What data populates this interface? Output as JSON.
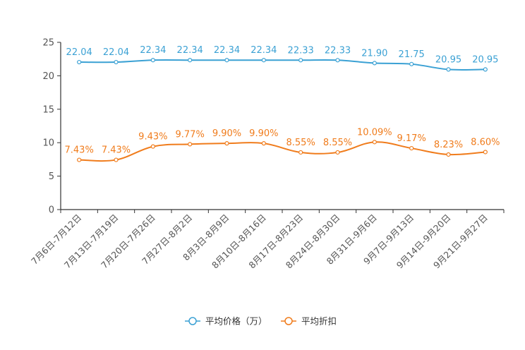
{
  "chart_data": {
    "type": "line",
    "title": "",
    "xlabel": "",
    "ylabel": "",
    "ylim": [
      0,
      25
    ],
    "yticks": [
      0,
      5,
      10,
      15,
      20,
      25
    ],
    "grid": false,
    "legend_position": "bottom-center",
    "categories": [
      "7月6日-7月12日",
      "7月13日-7月19日",
      "7月20日-7月26日",
      "7月27日-8月2日",
      "8月3日-8月9日",
      "8月10日-8月16日",
      "8月17日-8月23日",
      "8月24日-8月30日",
      "8月31日-9月6日",
      "9月7日-9月13日",
      "9月14日-9月20日",
      "9月21日-9月27日"
    ],
    "series": [
      {
        "name": "平均价格（万）",
        "color": "#3ba1d4",
        "values": [
          22.04,
          22.04,
          22.34,
          22.34,
          22.34,
          22.34,
          22.33,
          22.33,
          21.9,
          21.75,
          20.95,
          20.95
        ],
        "labels": [
          "22.04",
          "22.04",
          "22.34",
          "22.34",
          "22.34",
          "22.34",
          "22.33",
          "22.33",
          "21.90",
          "21.75",
          "20.95",
          "20.95"
        ]
      },
      {
        "name": "平均折扣",
        "color": "#f07c1c",
        "values": [
          7.43,
          7.43,
          9.43,
          9.77,
          9.9,
          9.9,
          8.55,
          8.55,
          10.09,
          9.17,
          8.23,
          8.6
        ],
        "labels": [
          "7.43%",
          "7.43%",
          "9.43%",
          "9.77%",
          "9.90%",
          "9.90%",
          "8.55%",
          "8.55%",
          "10.09%",
          "9.17%",
          "8.23%",
          "8.60%"
        ]
      }
    ]
  }
}
